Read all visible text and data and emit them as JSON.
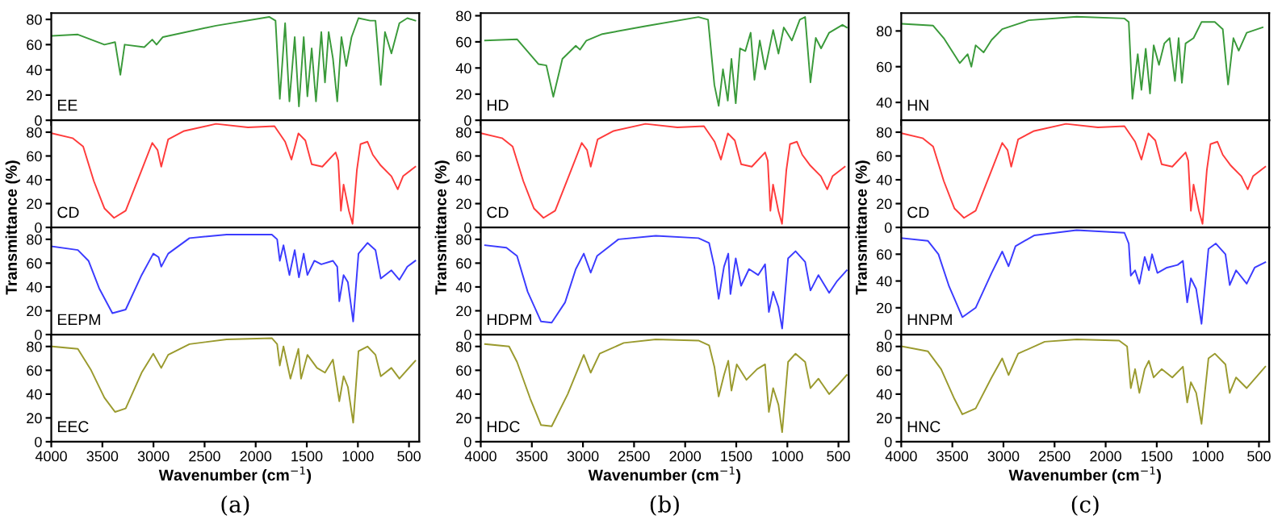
{
  "chart_data": [
    {
      "type": "line",
      "annotations": [
        "EE"
      ],
      "xlim": [
        4000,
        400
      ],
      "xticks": [
        4000,
        3500,
        3000,
        2500,
        2000,
        1500,
        1000,
        500
      ],
      "ylim": [
        0,
        85
      ],
      "yticks": [
        0,
        20,
        40,
        60,
        80
      ],
      "tick_labels": "y",
      "x": [
        3990,
        3740,
        3480,
        3376,
        3324,
        3282,
        3090,
        3012,
        2970,
        2908,
        2388,
        1868,
        1806,
        1764,
        1712,
        1670,
        1618,
        1577,
        1530,
        1494,
        1452,
        1410,
        1358,
        1322,
        1286,
        1244,
        1202,
        1161,
        1114,
        1062,
        994,
        880,
        828,
        776,
        735,
        672,
        594,
        516,
        438
      ],
      "series": [
        {
          "color": "#3a9a3a",
          "values": [
            67,
            68,
            60,
            62,
            36,
            60,
            58,
            64,
            60,
            66,
            75,
            82,
            79,
            17,
            77,
            15,
            66,
            11,
            66,
            19,
            57,
            15,
            70,
            30,
            70,
            49,
            15,
            66,
            43,
            66,
            81,
            79,
            79,
            28,
            70,
            53,
            77,
            81,
            79
          ]
        }
      ]
    },
    {
      "type": "line",
      "annotations": [
        "CD"
      ],
      "ylabel": "Transmittance (%)",
      "xlim": [
        4000,
        400
      ],
      "xticks": [
        4000,
        3500,
        3000,
        2500,
        2000,
        1500,
        1000,
        500
      ],
      "ylim": [
        0,
        90
      ],
      "yticks": [
        0,
        20,
        40,
        60,
        80
      ],
      "tick_labels": "y",
      "x": [
        3990,
        3792,
        3688,
        3584,
        3480,
        3386,
        3272,
        3116,
        3012,
        2960,
        2924,
        2856,
        2700,
        2388,
        2076,
        1816,
        1712,
        1650,
        1582,
        1514,
        1452,
        1348,
        1218,
        1192,
        1166,
        1140,
        1088,
        1052,
        1010,
        974,
        906,
        854,
        776,
        672,
        610,
        558,
        438
      ],
      "series": [
        {
          "color": "#ff3b3b",
          "values": [
            79,
            75,
            68,
            39,
            16,
            8,
            14,
            48,
            71,
            65,
            51,
            74,
            81,
            87,
            84,
            85,
            72,
            57,
            79,
            73,
            53,
            51,
            63,
            56,
            14,
            36,
            14,
            3,
            48,
            70,
            72,
            61,
            52,
            43,
            32,
            43,
            51
          ]
        }
      ]
    },
    {
      "type": "line",
      "annotations": [
        "EEPM"
      ],
      "xlim": [
        4000,
        400
      ],
      "xticks": [
        4000,
        3500,
        3000,
        2500,
        2000,
        1500,
        1000,
        500
      ],
      "ylim": [
        0,
        90
      ],
      "yticks": [
        0,
        20,
        40,
        60,
        80
      ],
      "tick_labels": "y",
      "x": [
        3990,
        3740,
        3636,
        3532,
        3402,
        3272,
        3116,
        3002,
        2950,
        2924,
        2856,
        2648,
        2284,
        1842,
        1790,
        1764,
        1728,
        1670,
        1618,
        1577,
        1530,
        1494,
        1426,
        1358,
        1244,
        1202,
        1182,
        1140,
        1098,
        1046,
        994,
        906,
        828,
        776,
        672,
        594,
        516,
        438
      ],
      "series": [
        {
          "color": "#3b3bff",
          "values": [
            74,
            71,
            62,
            39,
            18,
            21,
            50,
            68,
            65,
            57,
            68,
            81,
            84,
            84,
            80,
            62,
            75,
            50,
            71,
            48,
            68,
            50,
            62,
            59,
            62,
            57,
            28,
            50,
            44,
            11,
            68,
            77,
            71,
            47,
            54,
            46,
            57,
            62
          ]
        }
      ]
    },
    {
      "type": "line",
      "annotations": [
        "EEC",
        "(a)"
      ],
      "xlabel": "Wavenumber (cm$^{−1}$)",
      "xlim": [
        4000,
        400
      ],
      "xticks": [
        4000,
        3500,
        3000,
        2500,
        2000,
        1500,
        1000,
        500
      ],
      "ylim": [
        0,
        90
      ],
      "yticks": [
        0,
        20,
        40,
        60,
        80
      ],
      "x": [
        3990,
        3740,
        3610,
        3480,
        3376,
        3272,
        3116,
        3002,
        2924,
        2856,
        2648,
        2284,
        1842,
        1790,
        1764,
        1728,
        1660,
        1582,
        1556,
        1494,
        1400,
        1322,
        1244,
        1182,
        1140,
        1098,
        1046,
        994,
        906,
        828,
        776,
        672,
        594,
        438
      ],
      "series": [
        {
          "color": "#9a9a2e",
          "values": [
            80,
            78,
            60,
            37,
            25,
            28,
            58,
            74,
            62,
            73,
            82,
            86,
            87,
            82,
            64,
            80,
            53,
            78,
            53,
            73,
            62,
            58,
            69,
            34,
            55,
            46,
            16,
            76,
            80,
            73,
            55,
            62,
            53,
            68
          ]
        }
      ]
    },
    {
      "type": "line",
      "annotations": [
        "HD"
      ],
      "xlim": [
        4000,
        400
      ],
      "xticks": [
        4000,
        3500,
        3000,
        2500,
        2000,
        1500,
        1000,
        500
      ],
      "ylim": [
        0,
        82
      ],
      "yticks": [
        0,
        20,
        40,
        60,
        80
      ],
      "tick_labels": "y",
      "x": [
        3958,
        3645,
        3436,
        3358,
        3290,
        3201,
        3070,
        3029,
        2966,
        2810,
        2392,
        1870,
        1776,
        1714,
        1672,
        1630,
        1583,
        1547,
        1505,
        1463,
        1411,
        1359,
        1322,
        1270,
        1218,
        1139,
        1087,
        1035,
        956,
        878,
        826,
        774,
        722,
        670,
        591,
        461,
        419
      ],
      "series": [
        {
          "color": "#3a9a3a",
          "values": [
            61,
            62,
            43,
            42,
            18,
            47,
            57,
            54,
            61,
            66,
            72,
            79,
            77,
            27,
            11,
            39,
            15,
            47,
            13,
            55,
            53,
            67,
            31,
            61,
            39,
            69,
            51,
            71,
            61,
            77,
            79,
            29,
            63,
            55,
            67,
            73,
            71
          ]
        }
      ]
    },
    {
      "type": "line",
      "annotations": [
        "CD"
      ],
      "ylabel": "Transmittance (%)",
      "xlim": [
        4000,
        400
      ],
      "xticks": [
        4000,
        3500,
        3000,
        2500,
        2000,
        1500,
        1000,
        500
      ],
      "ylim": [
        0,
        90
      ],
      "yticks": [
        0,
        20,
        40,
        60,
        80
      ],
      "tick_labels": "y",
      "x": [
        3990,
        3792,
        3688,
        3584,
        3480,
        3386,
        3272,
        3116,
        3012,
        2960,
        2924,
        2856,
        2700,
        2388,
        2076,
        1816,
        1712,
        1650,
        1582,
        1514,
        1452,
        1348,
        1218,
        1192,
        1166,
        1140,
        1088,
        1052,
        1010,
        974,
        906,
        854,
        776,
        672,
        610,
        558,
        438
      ],
      "series": [
        {
          "color": "#ff3b3b",
          "values": [
            79,
            75,
            68,
            39,
            16,
            8,
            14,
            48,
            71,
            65,
            51,
            74,
            81,
            87,
            84,
            85,
            72,
            57,
            79,
            73,
            53,
            51,
            63,
            56,
            14,
            36,
            14,
            3,
            48,
            70,
            72,
            61,
            52,
            43,
            32,
            43,
            51
          ]
        }
      ]
    },
    {
      "type": "line",
      "annotations": [
        "HDPM"
      ],
      "xlim": [
        4000,
        400
      ],
      "xticks": [
        4000,
        3500,
        3000,
        2500,
        2000,
        1500,
        1000,
        500
      ],
      "ylim": [
        0,
        90
      ],
      "yticks": [
        0,
        20,
        40,
        60,
        80
      ],
      "tick_labels": "y",
      "x": [
        3958,
        3749,
        3645,
        3541,
        3410,
        3306,
        3175,
        3070,
        2992,
        2924,
        2862,
        2653,
        2288,
        1870,
        1766,
        1714,
        1672,
        1620,
        1578,
        1557,
        1505,
        1453,
        1375,
        1286,
        1218,
        1181,
        1139,
        1087,
        1051,
        993,
        920,
        826,
        774,
        696,
        591,
        513,
        419
      ],
      "series": [
        {
          "color": "#3b3bff",
          "values": [
            75,
            73,
            66,
            36,
            11,
            10,
            27,
            55,
            68,
            52,
            66,
            80,
            83,
            81,
            77,
            57,
            30,
            57,
            68,
            34,
            64,
            41,
            55,
            50,
            59,
            19,
            36,
            23,
            5,
            64,
            70,
            61,
            37,
            50,
            35,
            45,
            54
          ]
        }
      ]
    },
    {
      "type": "line",
      "annotations": [
        "HDC",
        "(b)"
      ],
      "xlabel": "Wavenumber (cm$^{−1}$)",
      "xlim": [
        4000,
        400
      ],
      "xticks": [
        4000,
        3500,
        3000,
        2500,
        2000,
        1500,
        1000,
        500
      ],
      "ylim": [
        0,
        90
      ],
      "yticks": [
        0,
        20,
        40,
        60,
        80
      ],
      "x": [
        3958,
        3723,
        3645,
        3515,
        3410,
        3306,
        3149,
        2992,
        2924,
        2836,
        2601,
        2288,
        1870,
        1766,
        1714,
        1672,
        1620,
        1578,
        1547,
        1495,
        1400,
        1296,
        1218,
        1181,
        1139,
        1087,
        1051,
        993,
        920,
        826,
        774,
        696,
        591,
        513,
        419
      ],
      "series": [
        {
          "color": "#9a9a2e",
          "values": [
            82,
            80,
            67,
            36,
            14,
            13,
            40,
            73,
            58,
            74,
            83,
            86,
            85,
            81,
            63,
            38,
            56,
            68,
            43,
            65,
            52,
            61,
            65,
            25,
            45,
            31,
            8,
            67,
            74,
            67,
            45,
            53,
            40,
            47,
            56
          ]
        }
      ]
    },
    {
      "type": "line",
      "annotations": [
        "HN"
      ],
      "xlim": [
        4000,
        400
      ],
      "xticks": [
        4000,
        3500,
        3000,
        2500,
        2000,
        1500,
        1000,
        500
      ],
      "ylim": [
        30,
        90
      ],
      "yticks": [
        40,
        60,
        80
      ],
      "tick_labels": "y",
      "x": [
        3990,
        3688,
        3584,
        3428,
        3350,
        3314,
        3272,
        3194,
        3116,
        3012,
        2752,
        2284,
        1816,
        1774,
        1738,
        1686,
        1650,
        1608,
        1566,
        1530,
        1478,
        1426,
        1374,
        1322,
        1286,
        1254,
        1218,
        1140,
        1062,
        932,
        854,
        802,
        750,
        698,
        620,
        464
      ],
      "series": [
        {
          "color": "#3a9a3a",
          "values": [
            84,
            83,
            76,
            62,
            67,
            60,
            72,
            68,
            75,
            81,
            86,
            88,
            87,
            85,
            42,
            67,
            47,
            70,
            45,
            72,
            61,
            73,
            76,
            52,
            76,
            51,
            73,
            76,
            85,
            85,
            81,
            50,
            76,
            69,
            79,
            82
          ]
        }
      ]
    },
    {
      "type": "line",
      "annotations": [
        "CD"
      ],
      "ylabel": "Transmittance (%)",
      "xlim": [
        4000,
        400
      ],
      "xticks": [
        4000,
        3500,
        3000,
        2500,
        2000,
        1500,
        1000,
        500
      ],
      "ylim": [
        0,
        90
      ],
      "yticks": [
        0,
        20,
        40,
        60,
        80
      ],
      "tick_labels": "y",
      "x": [
        3990,
        3792,
        3688,
        3584,
        3480,
        3386,
        3272,
        3116,
        3012,
        2960,
        2924,
        2856,
        2700,
        2388,
        2076,
        1816,
        1712,
        1650,
        1582,
        1514,
        1452,
        1348,
        1218,
        1192,
        1166,
        1140,
        1088,
        1052,
        1010,
        974,
        906,
        854,
        776,
        672,
        610,
        558,
        438
      ],
      "series": [
        {
          "color": "#ff3b3b",
          "values": [
            79,
            75,
            68,
            39,
            16,
            8,
            14,
            48,
            71,
            65,
            51,
            74,
            81,
            87,
            84,
            85,
            72,
            57,
            79,
            73,
            53,
            51,
            63,
            56,
            14,
            36,
            14,
            3,
            48,
            70,
            72,
            61,
            52,
            43,
            32,
            43,
            51
          ]
        }
      ]
    },
    {
      "type": "line",
      "annotations": [
        "HNPM"
      ],
      "xlim": [
        4000,
        400
      ],
      "xticks": [
        4000,
        3500,
        3000,
        2500,
        2000,
        1500,
        1000,
        500
      ],
      "ylim": [
        0,
        80
      ],
      "yticks": [
        0,
        20,
        40,
        60
      ],
      "tick_labels": "y",
      "x": [
        3990,
        3740,
        3636,
        3532,
        3402,
        3272,
        3116,
        3012,
        2950,
        2882,
        2700,
        2284,
        1816,
        1774,
        1754,
        1712,
        1670,
        1618,
        1577,
        1546,
        1494,
        1400,
        1296,
        1244,
        1202,
        1166,
        1114,
        1062,
        994,
        922,
        828,
        786,
        724,
        620,
        542,
        438
      ],
      "series": [
        {
          "color": "#3b3bff",
          "values": [
            72,
            70,
            60,
            36,
            13,
            20,
            46,
            62,
            51,
            66,
            74,
            78,
            76,
            68,
            44,
            48,
            38,
            58,
            48,
            60,
            46,
            50,
            52,
            55,
            24,
            42,
            34,
            8,
            64,
            68,
            60,
            37,
            48,
            38,
            50,
            54
          ]
        }
      ]
    },
    {
      "type": "line",
      "annotations": [
        "HNC",
        "(c)"
      ],
      "xlabel": "Wavenumber (cm$^{−1}$)",
      "xlim": [
        4000,
        400
      ],
      "xticks": [
        4000,
        3500,
        3000,
        2500,
        2000,
        1500,
        1000,
        500
      ],
      "ylim": [
        0,
        90
      ],
      "yticks": [
        0,
        20,
        40,
        60,
        80
      ],
      "x": [
        3990,
        3740,
        3610,
        3480,
        3402,
        3272,
        3116,
        3012,
        2950,
        2856,
        2596,
        2284,
        1868,
        1790,
        1754,
        1712,
        1670,
        1618,
        1577,
        1530,
        1452,
        1348,
        1244,
        1202,
        1166,
        1114,
        1062,
        994,
        932,
        828,
        786,
        724,
        620,
        438
      ],
      "series": [
        {
          "color": "#9a9a2e",
          "values": [
            80,
            76,
            61,
            36,
            23,
            28,
            54,
            70,
            56,
            74,
            84,
            86,
            85,
            80,
            45,
            61,
            41,
            61,
            68,
            54,
            61,
            54,
            63,
            33,
            50,
            41,
            15,
            70,
            74,
            65,
            41,
            54,
            45,
            63
          ]
        }
      ]
    }
  ]
}
